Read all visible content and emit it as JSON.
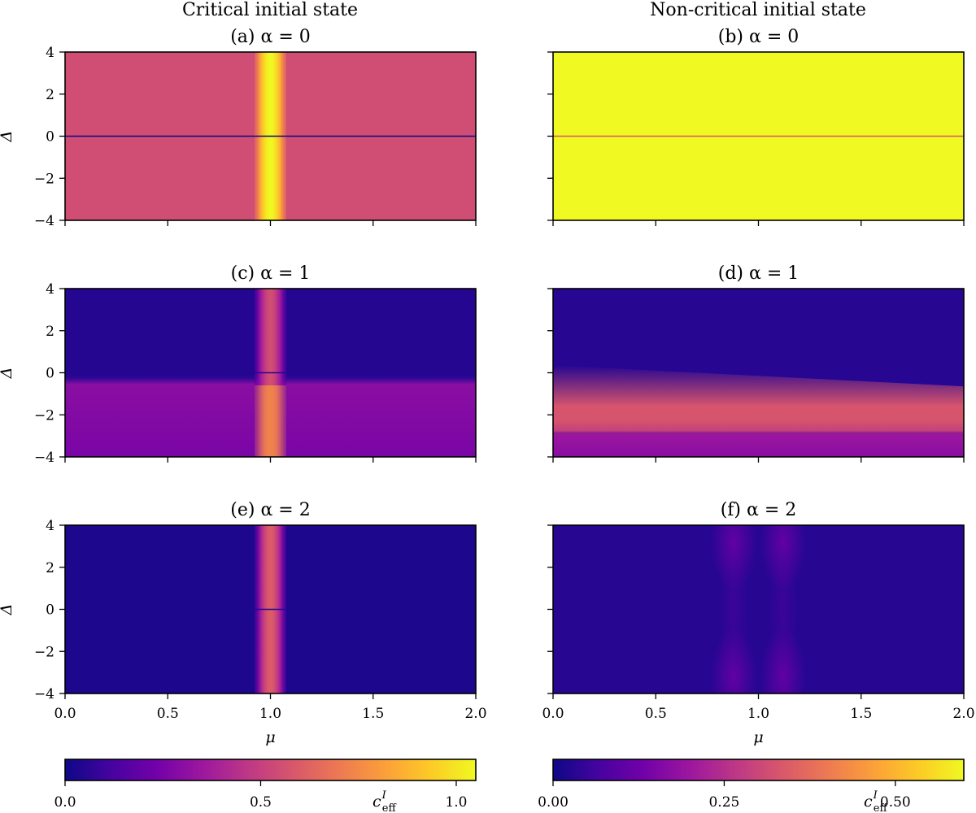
{
  "figure": {
    "left_column_title": "Critical initial state",
    "right_column_title": "Non-critical initial state",
    "colormap": "plasma",
    "colormap_stops": [
      "#0d0887",
      "#46039f",
      "#7201a8",
      "#9c179e",
      "#bd3786",
      "#d8576b",
      "#ed7953",
      "#fb9f3a",
      "#fdca26",
      "#f0f921"
    ]
  },
  "chart_data": [
    {
      "type": "heatmap",
      "id": "a",
      "column": "left",
      "row": 0,
      "title": "(a) α = 0",
      "xlabel": "",
      "ylabel": "Δ",
      "xlim": [
        0,
        2
      ],
      "ylim": [
        -4,
        4
      ],
      "xticks": [
        0.0,
        0.5,
        1.0,
        1.5,
        2.0
      ],
      "xticklabels": [],
      "yticks": [
        4,
        2,
        0,
        -2,
        -4
      ],
      "yticklabels": [
        "4",
        "2",
        "0",
        "−2",
        "−4"
      ],
      "colorbar_range": [
        0,
        1.05
      ],
      "background_value": 0.55,
      "features": [
        {
          "kind": "vertical_band",
          "center_mu": 1.0,
          "width_mu": 0.14,
          "peak_value": 1.05
        },
        {
          "kind": "horizontal_line",
          "delta": 0.0,
          "value": 0.0
        }
      ]
    },
    {
      "type": "heatmap",
      "id": "b",
      "column": "right",
      "row": 0,
      "title": "(b) α = 0",
      "xlabel": "",
      "ylabel": "",
      "xlim": [
        0,
        2
      ],
      "ylim": [
        -4,
        4
      ],
      "xticks": [
        0.0,
        0.5,
        1.0,
        1.5,
        2.0
      ],
      "xticklabels": [],
      "yticks": [
        4,
        2,
        0,
        -2,
        -4
      ],
      "yticklabels": [],
      "colorbar_range": [
        0,
        0.6
      ],
      "background_value": 0.6,
      "features": [
        {
          "kind": "horizontal_line",
          "delta": 0.0,
          "value": 0.33
        }
      ]
    },
    {
      "type": "heatmap",
      "id": "c",
      "column": "left",
      "row": 1,
      "title": "(c) α = 1",
      "xlabel": "",
      "ylabel": "Δ",
      "xlim": [
        0,
        2
      ],
      "ylim": [
        -4,
        4
      ],
      "xticks": [
        0.0,
        0.5,
        1.0,
        1.5,
        2.0
      ],
      "xticklabels": [],
      "yticks": [
        4,
        2,
        0,
        -2,
        -4
      ],
      "yticklabels": [
        "4",
        "2",
        "0",
        "−2",
        "−4"
      ],
      "colorbar_range": [
        0,
        1.05
      ],
      "background_value": 0.05,
      "features": [
        {
          "kind": "lower_region",
          "below_delta": -0.3,
          "value": 0.3
        },
        {
          "kind": "vertical_band",
          "center_mu": 1.0,
          "width_mu": 0.14,
          "peak_value": 0.55,
          "lower_peak_value": 0.75
        },
        {
          "kind": "horizontal_line",
          "delta": 0.0,
          "value": 0.05
        }
      ]
    },
    {
      "type": "heatmap",
      "id": "d",
      "column": "right",
      "row": 1,
      "title": "(d) α = 1",
      "xlabel": "",
      "ylabel": "",
      "xlim": [
        0,
        2
      ],
      "ylim": [
        -4,
        4
      ],
      "xticks": [
        0.0,
        0.5,
        1.0,
        1.5,
        2.0
      ],
      "xticklabels": [],
      "yticks": [
        4,
        2,
        0,
        -2,
        -4
      ],
      "yticklabels": [],
      "colorbar_range": [
        0,
        0.6
      ],
      "background_value": 0.03,
      "features": [
        {
          "kind": "tilted_band",
          "delta_at_mu0": -1.0,
          "delta_at_mu2": -2.0,
          "peak_value": 0.33
        },
        {
          "kind": "lower_region",
          "below_delta": -3.0,
          "value": 0.2
        }
      ]
    },
    {
      "type": "heatmap",
      "id": "e",
      "column": "left",
      "row": 2,
      "title": "(e) α = 2",
      "xlabel": "μ",
      "ylabel": "Δ",
      "xlim": [
        0,
        2
      ],
      "ylim": [
        -4,
        4
      ],
      "xticks": [
        0.0,
        0.5,
        1.0,
        1.5,
        2.0
      ],
      "xticklabels": [
        "0.0",
        "0.5",
        "1.0",
        "1.5",
        "2.0"
      ],
      "yticks": [
        4,
        2,
        0,
        -2,
        -4
      ],
      "yticklabels": [
        "4",
        "2",
        "0",
        "−2",
        "−4"
      ],
      "colorbar_range": [
        0,
        1.05
      ],
      "background_value": 0.03,
      "features": [
        {
          "kind": "vertical_band",
          "center_mu": 1.0,
          "width_mu": 0.14,
          "peak_value": 0.6
        },
        {
          "kind": "horizontal_line",
          "delta": 0.0,
          "value": 0.05
        }
      ]
    },
    {
      "type": "heatmap",
      "id": "f",
      "column": "right",
      "row": 2,
      "title": "(f) α = 2",
      "xlabel": "μ",
      "ylabel": "",
      "xlim": [
        0,
        2
      ],
      "ylim": [
        -4,
        4
      ],
      "xticks": [
        0.0,
        0.5,
        1.0,
        1.5,
        2.0
      ],
      "xticklabels": [
        "0.0",
        "0.5",
        "1.0",
        "1.5",
        "2.0"
      ],
      "yticks": [
        4,
        2,
        0,
        -2,
        -4
      ],
      "yticklabels": [],
      "colorbar_range": [
        0,
        0.6
      ],
      "background_value": 0.03,
      "features": [
        {
          "kind": "side_bumps",
          "mu_centers": [
            0.88,
            1.12
          ],
          "value": 0.12
        }
      ]
    }
  ],
  "colorbars": [
    {
      "id": "left",
      "label": "c_eff^I",
      "label_main": "c",
      "label_sub": "eff",
      "label_sup": "I",
      "range": [
        0,
        1.05
      ],
      "ticks": [
        0.0,
        0.5,
        1.0
      ],
      "ticklabels": [
        "0.0",
        "0.5",
        "1.0"
      ]
    },
    {
      "id": "right",
      "label": "c_eff^I",
      "label_main": "c",
      "label_sub": "eff",
      "label_sup": "I",
      "range": [
        0,
        0.6
      ],
      "ticks": [
        0.0,
        0.25,
        0.5
      ],
      "ticklabels": [
        "0.00",
        "0.25",
        "0.50"
      ]
    }
  ]
}
